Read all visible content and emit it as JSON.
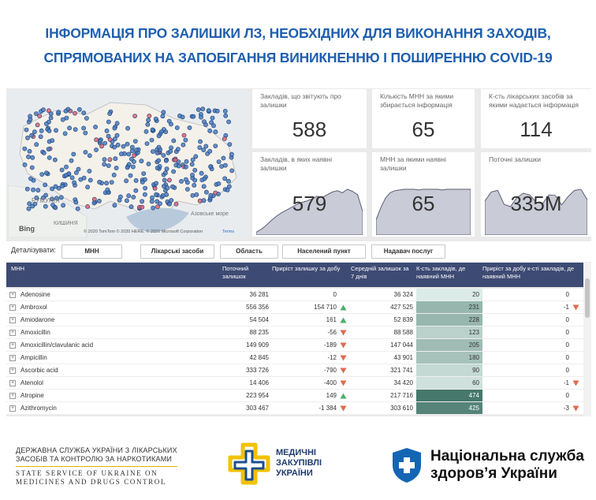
{
  "header": {
    "title_lines": [
      "ІНФОРМАЦІЯ ПРО ЗАЛИШКИ ЛЗ, НЕОБХІДНИХ ДЛЯ ВИКОНАННЯ ЗАХОДІВ,",
      "СПРЯМОВАНИХ НА ЗАПОБІГАННЯ ВИНИКНЕННЮ І ПОШИРЕННЮ COVID-19"
    ]
  },
  "map": {
    "labels": [
      "РУМУНІЯ",
      "КИШИНЯ",
      "Азовське море"
    ],
    "provider": "Bing",
    "attribution": "© 2020 TomTom © 2020 HERE, © 2020 Microsoft Corporation",
    "terms": "Terms"
  },
  "cards": [
    {
      "label": "Закладів, що звітують про залишки",
      "value": 588
    },
    {
      "label": "Кількість МНН за якими збирається інформація",
      "value": 65
    },
    {
      "label": "К-сть лікарських засобів за якими надається інформація",
      "value": 114
    },
    {
      "label": "Закладів, в яких наявні залишки",
      "value": 579,
      "sparkline": [
        20,
        60,
        120,
        190,
        250,
        300,
        340,
        380,
        420,
        450,
        470,
        500,
        540,
        520,
        560,
        600,
        620,
        590,
        640,
        610,
        560,
        320
      ]
    },
    {
      "label": "МНН за якими наявні залишки",
      "value": 65,
      "sparkline": [
        20,
        38,
        52,
        60,
        63,
        64,
        65,
        65,
        65,
        64,
        65,
        65,
        65,
        65,
        64,
        65,
        65,
        65,
        65,
        65,
        65
      ]
    },
    {
      "label": "Поточні залишки",
      "value": 335000000,
      "value_label": "335M",
      "sparkline": [
        290000000,
        370000000,
        385000000,
        260000000,
        240000000,
        320000000,
        360000000,
        345000000,
        280000000,
        265000000,
        345000000,
        340000000,
        255000000,
        330000000,
        385000000,
        395000000,
        300000000
      ]
    }
  ],
  "slicers": {
    "label": "Деталізувати:",
    "buttons": [
      "МНН",
      "Лікарські засоби",
      "Область",
      "Населений пункт",
      "Надавач послуг"
    ]
  },
  "table": {
    "columns": [
      "МНН",
      "Поточний залишок",
      "Приріст залишку за добу",
      "Середній залишок за 7 днів",
      "К-сть закладів, де наявний МНН",
      "Приріст за добу к-сті закладів, де наявний МНН"
    ],
    "rows": [
      [
        "Adenosine",
        "36 281",
        "0",
        "36 324",
        20,
        "0"
      ],
      [
        "Ambroxol",
        "556 356",
        "154 710",
        "427 525",
        231,
        "-1"
      ],
      [
        "Amiodarone",
        "54 504",
        "161",
        "52 839",
        228,
        "0"
      ],
      [
        "Amoxicillin",
        "88 235",
        "-56",
        "88 588",
        123,
        "0"
      ],
      [
        "Amoxicillin/clavulanic acid",
        "149 909",
        "-189",
        "147 044",
        205,
        "0"
      ],
      [
        "Ampicillin",
        "42 845",
        "-12",
        "43 901",
        180,
        "0"
      ],
      [
        "Ascorbic acid",
        "333 726",
        "-790",
        "321 741",
        90,
        "0"
      ],
      [
        "Atenolol",
        "14 406",
        "-400",
        "34 420",
        60,
        "-1"
      ],
      [
        "Atropine",
        "223 954",
        "149",
        "217 716",
        474,
        "0"
      ],
      [
        "Azithromycin",
        "303 467",
        "-1 384",
        "303 610",
        425,
        "-3"
      ]
    ]
  },
  "footer": {
    "dls_lines": [
      "ДЕРЖАВНА СЛУЖБА УКРАЇНИ З ЛІКАРСЬКИХ",
      "ЗАСОБІВ ТА КОНТРОЛЮ ЗА НАРКОТИКАМИ"
    ],
    "dls_en_lines": [
      "STATE SERVICE OF UKRAINE ON",
      "MEDICINES AND DRUGS CONTROL"
    ],
    "mz_lines": [
      "МЕДИЧНІ",
      "ЗАКУПІВЛІ",
      "УКРАЇНИ"
    ],
    "nszu_lines": [
      "Національна служба",
      "здоров’я України"
    ]
  }
}
